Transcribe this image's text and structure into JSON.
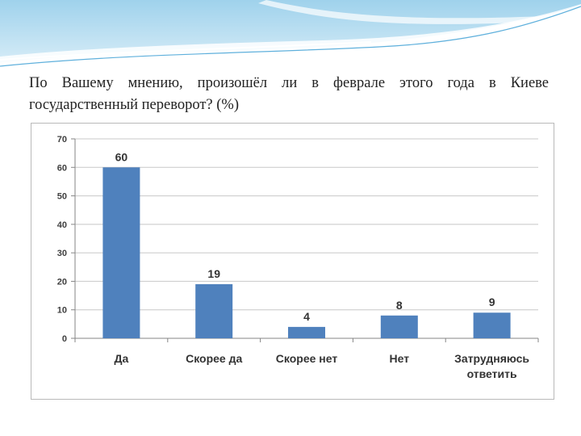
{
  "slide": {
    "question": "По Вашему мнению, произошёл ли в феврале этого года в Киеве государственный переворот? (%)"
  },
  "colors": {
    "bar": "#4f81bd",
    "banner_light": "#d6ecf7",
    "banner_mid": "#9fd2ec",
    "banner_dark": "#5fb0dc"
  },
  "chart_data": {
    "type": "bar",
    "title": "",
    "xlabel": "",
    "ylabel": "",
    "categories": [
      "Да",
      "Скорее да",
      "Скорее нет",
      "Нет",
      "Затрудняюсь ответить"
    ],
    "category_lines": [
      [
        "Да"
      ],
      [
        "Скорее да"
      ],
      [
        "Скорее нет"
      ],
      [
        "Нет"
      ],
      [
        "Затрудняюсь",
        "ответить"
      ]
    ],
    "values": [
      60,
      19,
      4,
      8,
      9
    ],
    "data_labels": [
      "60",
      "19",
      "4",
      "8",
      "9"
    ],
    "ylim": [
      0,
      70
    ],
    "yticks": [
      0,
      10,
      20,
      30,
      40,
      50,
      60,
      70
    ],
    "grid": true,
    "legend": "none"
  }
}
